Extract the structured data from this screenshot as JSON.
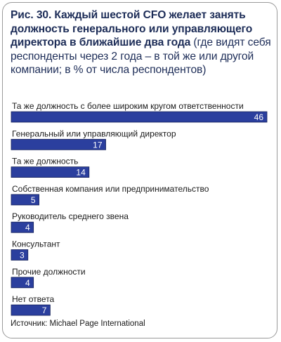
{
  "header": {
    "title_bold": "Рис. 30. Каждый шестой CFO желает занять должность генерального или управляющего директора в ближайшие два года",
    "title_note": " (где видят себя респонденты через 2 года – в той же или другой компании; в % от числа респондентов)"
  },
  "source": "Источник: Michael Page International",
  "colors": {
    "bar": "#2b3f9e",
    "bar_border": "#16225a",
    "value_text": "#ffffff",
    "label_text": "#1a1a1a",
    "title": "#1c2c57"
  },
  "chart_data": {
    "type": "bar",
    "orientation": "horizontal",
    "unit": "%",
    "categories": [
      "Та же должность с более широким кругом ответственности",
      "Генеральный или управляющий директор",
      "Та же должность",
      "Собственная компания или предпринимательство",
      "Руководитель среднего звена",
      "Консультант",
      "Прочие должности",
      "Нет ответа"
    ],
    "values": [
      46,
      17,
      14,
      5,
      4,
      3,
      4,
      7
    ],
    "xlim": [
      0,
      46
    ],
    "grid": false,
    "legend": "none"
  }
}
